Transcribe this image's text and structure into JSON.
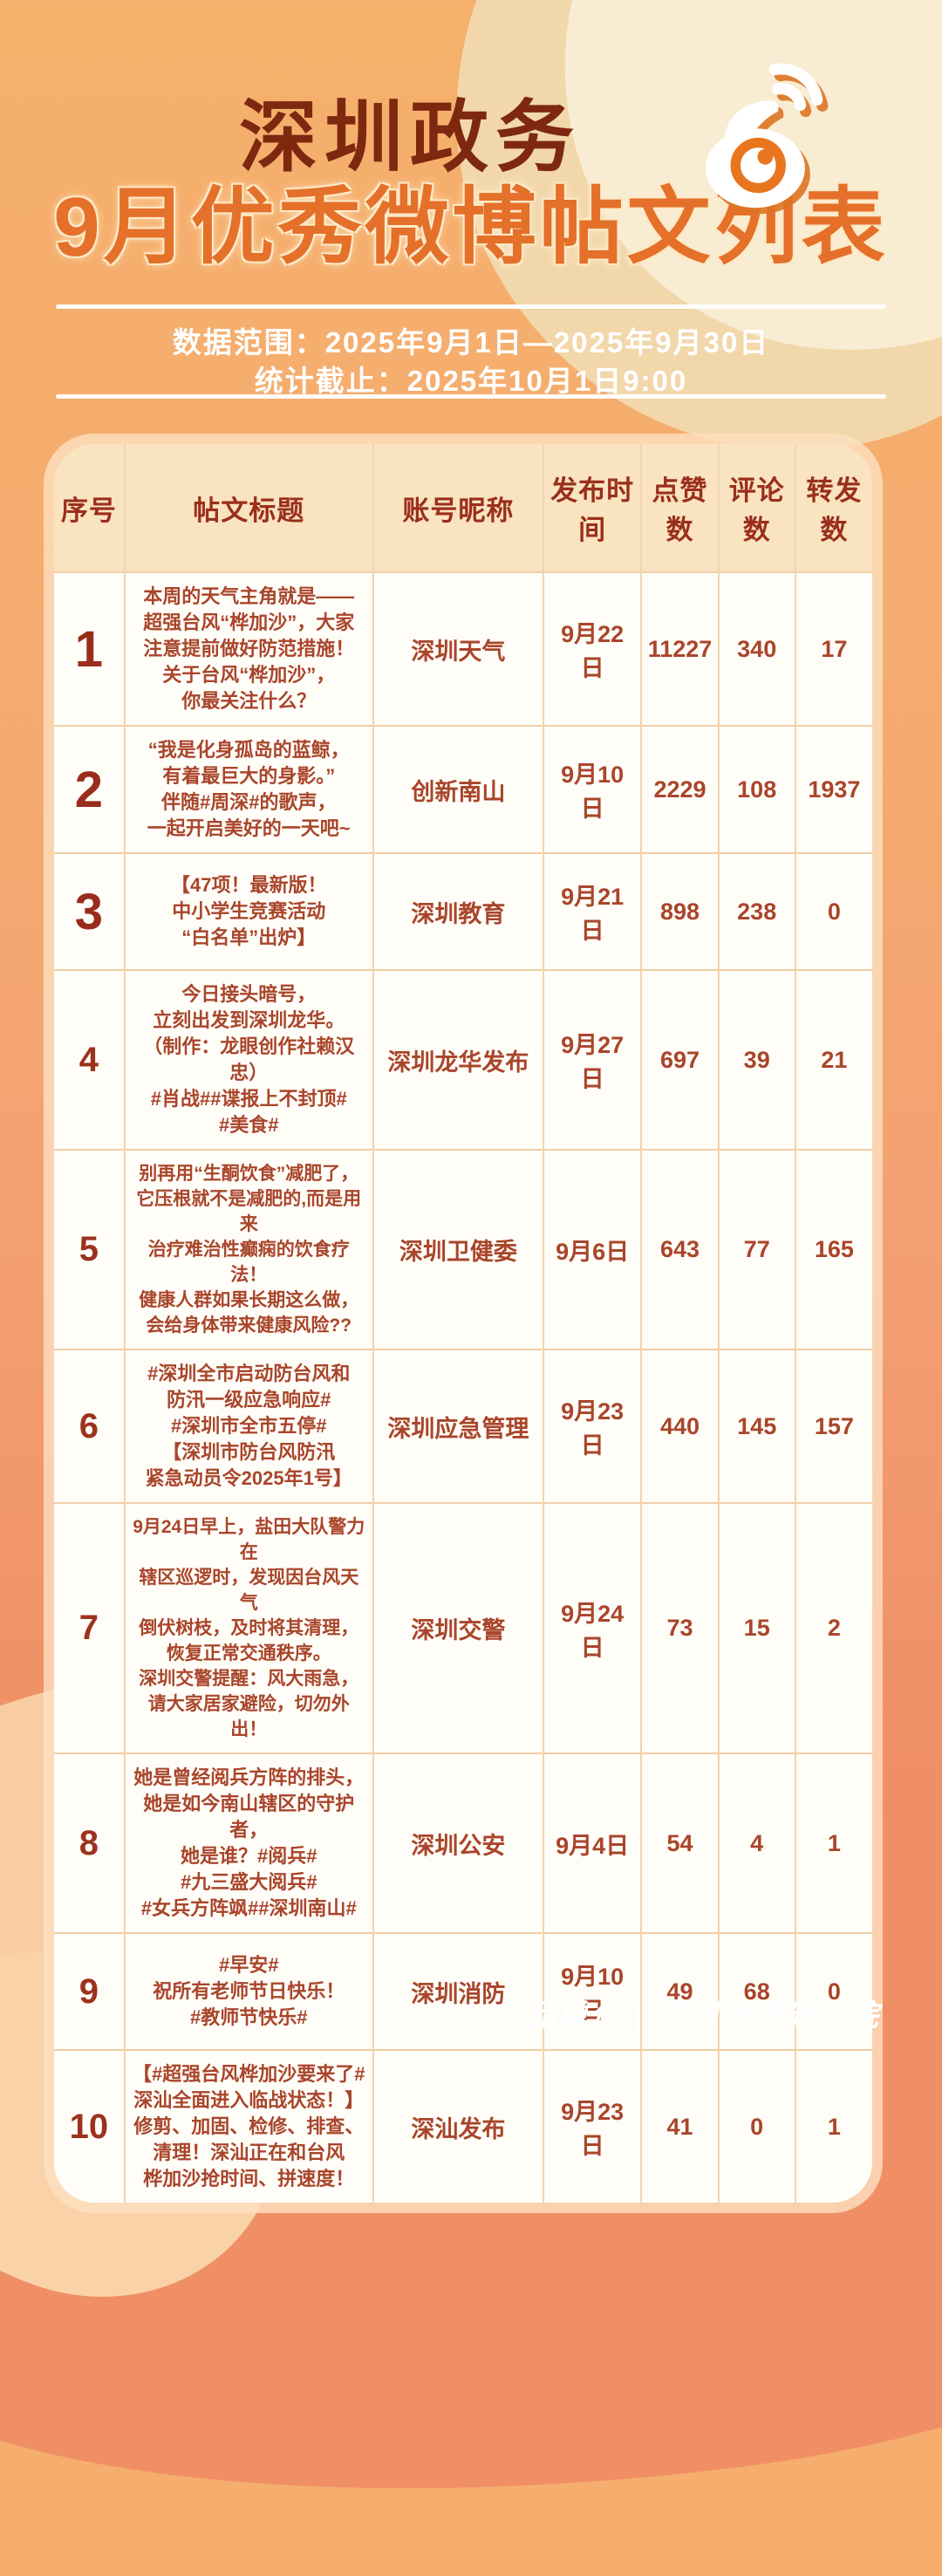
{
  "header": {
    "title": "深圳政务",
    "subtitle": "9月优秀微博帖文列表"
  },
  "meta": {
    "range": "数据范围：2025年9月1日—2025年9月30日",
    "deadline": "统计截止：2025年10月1日9:00"
  },
  "table": {
    "columns": [
      "序号",
      "帖文标题",
      "账号昵称",
      "发布时间",
      "点赞数",
      "评论数",
      "转发数"
    ],
    "rows": [
      {
        "no": "1",
        "title": "本周的天气主角就是——\n超强台风“桦加沙”，大家\n注意提前做好防范措施！\n关于台风“桦加沙”，\n你最关注什么？",
        "account": "深圳天气",
        "date": "9月22日",
        "likes": "11227",
        "comments": "340",
        "reposts": "17"
      },
      {
        "no": "2",
        "title": "“我是化身孤岛的蓝鲸，\n有着最巨大的身影。”\n伴随#周深#的歌声，\n一起开启美好的一天吧~",
        "account": "创新南山",
        "date": "9月10日",
        "likes": "2229",
        "comments": "108",
        "reposts": "1937"
      },
      {
        "no": "3",
        "title": "【47项！最新版！\n中小学生竞赛活动\n“白名单”出炉】",
        "account": "深圳教育",
        "date": "9月21日",
        "likes": "898",
        "comments": "238",
        "reposts": "0"
      },
      {
        "no": "4",
        "title": "今日接头暗号，\n立刻出发到深圳龙华。\n（制作：龙眼创作社赖汉忠）\n#肖战##谍报上不封顶#\n#美食#",
        "account": "深圳龙华发布",
        "date": "9月27日",
        "likes": "697",
        "comments": "39",
        "reposts": "21"
      },
      {
        "no": "5",
        "title": "别再用“生酮饮食”减肥了，\n它压根就不是减肥的,而是用来\n治疗难治性癫痫的饮食疗法！\n健康人群如果长期这么做，\n会给身体带来健康风险??",
        "account": "深圳卫健委",
        "date": "9月6日",
        "likes": "643",
        "comments": "77",
        "reposts": "165"
      },
      {
        "no": "6",
        "title": "#深圳全市启动防台风和\n防汛一级应急响应#\n#深圳市全市五停#\n【深圳市防台风防汛\n紧急动员令2025年1号】",
        "account": "深圳应急管理",
        "date": "9月23日",
        "likes": "440",
        "comments": "145",
        "reposts": "157"
      },
      {
        "no": "7",
        "title": "9月24日早上，盐田大队警力在\n辖区巡逻时，发现因台风天气\n倒伏树枝，及时将其清理，\n恢复正常交通秩序。\n深圳交警提醒：风大雨急，\n请大家居家避险，切勿外出！",
        "account": "深圳交警",
        "date": "9月24日",
        "likes": "73",
        "comments": "15",
        "reposts": "2"
      },
      {
        "no": "8",
        "title": "她是曾经阅兵方阵的排头，\n她是如今南山辖区的守护者，\n她是谁？#阅兵#\n#九三盛大阅兵#\n#女兵方阵飒##深圳南山#",
        "account": "深圳公安",
        "date": "9月4日",
        "likes": "54",
        "comments": "4",
        "reposts": "1"
      },
      {
        "no": "9",
        "title": "#早安#\n祝所有老师节日快乐！\n#教师节快乐#",
        "account": "深圳消防",
        "date": "9月10日",
        "likes": "49",
        "comments": "68",
        "reposts": "0"
      },
      {
        "no": "10",
        "title": "【#超强台风桦加沙要来了#\n深汕全面进入临战状态！】\n修剪、加固、检修、排查、\n清理！深汕正在和台风\n桦加沙抢时间、拼速度！",
        "account": "深汕发布",
        "date": "9月23日",
        "likes": "41",
        "comments": "0",
        "reposts": "1"
      }
    ]
  },
  "footer": {
    "credit": "出品单位 | 深圳舆情研究院"
  },
  "colors": {
    "background_top": "#f5b06c",
    "background_bottom": "#ee8760",
    "title_maroon": "#7e2810",
    "subtitle_orange": "#e4702a",
    "table_header_bg": "#f9e3c1",
    "table_row_bg": "#fffdf7",
    "table_text": "#a9452b",
    "weibo_orange": "#e8761f"
  },
  "icons": {
    "weibo": "weibo-eye-with-signal-waves"
  }
}
